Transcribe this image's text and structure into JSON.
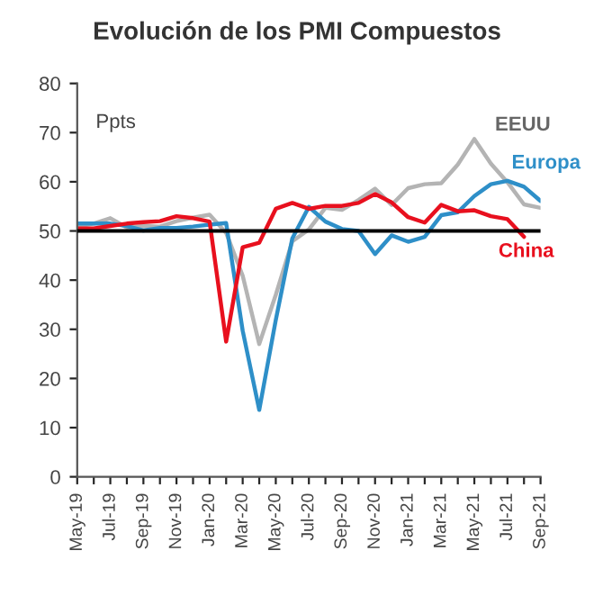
{
  "chart_data": {
    "type": "line",
    "title": "Evolución de los PMI Compuestos",
    "categories": [
      "May-19",
      null,
      "Jul-19",
      null,
      "Sep-19",
      null,
      "Nov-19",
      null,
      "Jan-20",
      null,
      "Mar-20",
      null,
      "May-20",
      null,
      "Jul-20",
      null,
      "Sep-20",
      null,
      "Nov-20",
      null,
      "Jan-21",
      null,
      "Mar-21",
      null,
      "May-21",
      null,
      "Jul-21",
      null,
      "Sep-21"
    ],
    "series": [
      {
        "name": "EEUU",
        "color": "#b4b4b4",
        "values": [
          50.9,
          51.5,
          52.6,
          50.7,
          51,
          50.9,
          52,
          52.7,
          53.3,
          49.6,
          40.9,
          27,
          37,
          47.9,
          50.3,
          54.7,
          54.3,
          56.3,
          58.6,
          55.3,
          58.7,
          59.5,
          59.7,
          63.5,
          68.7,
          63.7,
          59.9,
          55.4,
          54.7
        ]
      },
      {
        "name": "Europa",
        "color": "#2e8fc8",
        "values": [
          51.5,
          51.5,
          51.5,
          51,
          50.1,
          50.6,
          50.6,
          50.9,
          51.3,
          51.6,
          29.7,
          13.6,
          31.9,
          48.5,
          54.9,
          51.9,
          50.4,
          50,
          45.3,
          49.1,
          47.8,
          48.8,
          53.2,
          53.8,
          57.1,
          59.5,
          60.2,
          59,
          56.1
        ]
      },
      {
        "name": "China",
        "color": "#e8101e",
        "values": [
          50.5,
          50.5,
          51,
          51.5,
          51.8,
          52,
          53,
          52.6,
          51.9,
          27.5,
          46.7,
          47.6,
          54.5,
          55.7,
          54.5,
          55.1,
          55.1,
          55.7,
          57.5,
          55.8,
          52.8,
          51.7,
          55.3,
          54,
          54.2,
          53,
          52.4,
          48.8,
          null
        ]
      }
    ],
    "ylim": [
      0,
      80
    ],
    "yticks": [
      0,
      10,
      20,
      30,
      40,
      50,
      60,
      70,
      80
    ],
    "ref_lines": [
      {
        "axis": "y",
        "value": 50,
        "color": "#000000"
      }
    ],
    "annotations": [
      "Ppts"
    ],
    "grid": false,
    "legend": false
  }
}
